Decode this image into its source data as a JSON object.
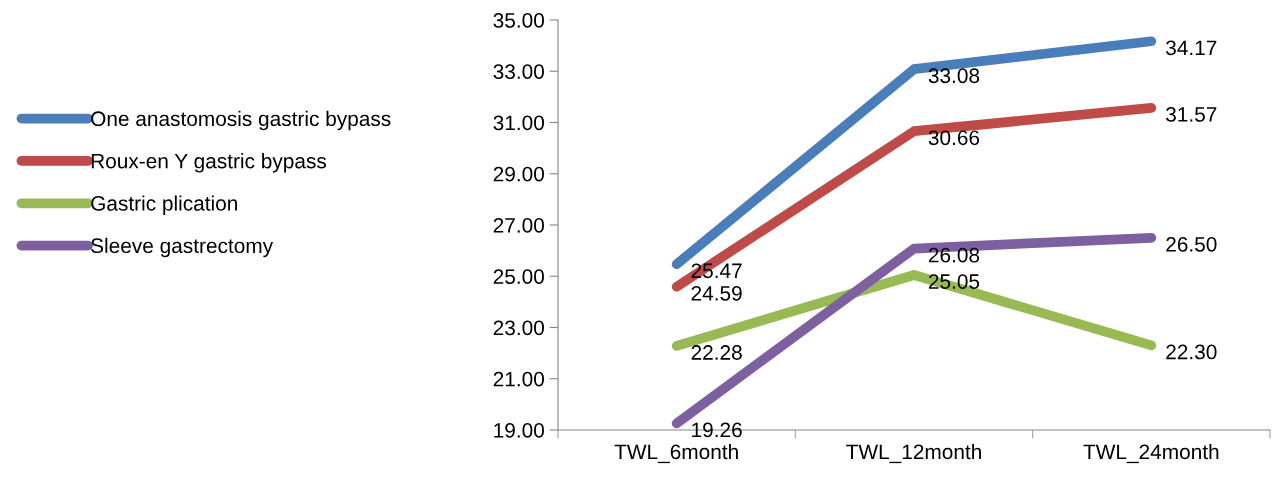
{
  "chart_data": {
    "type": "line",
    "categories": [
      "TWL_6month",
      "TWL_12month",
      "TWL_24month"
    ],
    "series": [
      {
        "name": "One anastomosis gastric bypass",
        "color": "#4a7ebb",
        "values": [
          25.47,
          33.08,
          34.17
        ],
        "value_labels": [
          "25.47",
          "33.08",
          "34.17"
        ]
      },
      {
        "name": "Roux-en Y gastric bypass",
        "color": "#be4b48",
        "values": [
          24.59,
          30.66,
          31.57
        ],
        "value_labels": [
          "24.59",
          "30.66",
          "31.57"
        ]
      },
      {
        "name": "Gastric plication",
        "color": "#98b954",
        "values": [
          22.28,
          25.05,
          22.3
        ],
        "value_labels": [
          "22.28",
          "25.05",
          "22.30"
        ]
      },
      {
        "name": "Sleeve gastrectomy",
        "color": "#7d60a0",
        "values": [
          19.26,
          26.08,
          26.5
        ],
        "value_labels": [
          "19.26",
          "26.08",
          "26.50"
        ]
      }
    ],
    "ylim": [
      19,
      35
    ],
    "yticks": [
      {
        "value": 19,
        "label": "19.00"
      },
      {
        "value": 21,
        "label": "21.00"
      },
      {
        "value": 23,
        "label": "23.00"
      },
      {
        "value": 25,
        "label": "25.00"
      },
      {
        "value": 27,
        "label": "27.00"
      },
      {
        "value": 29,
        "label": "29.00"
      },
      {
        "value": 31,
        "label": "31.00"
      },
      {
        "value": 33,
        "label": "33.00"
      },
      {
        "value": 35,
        "label": "35.00"
      }
    ],
    "grid": false,
    "legend": "left",
    "marker": "none",
    "line_style": "solid"
  }
}
